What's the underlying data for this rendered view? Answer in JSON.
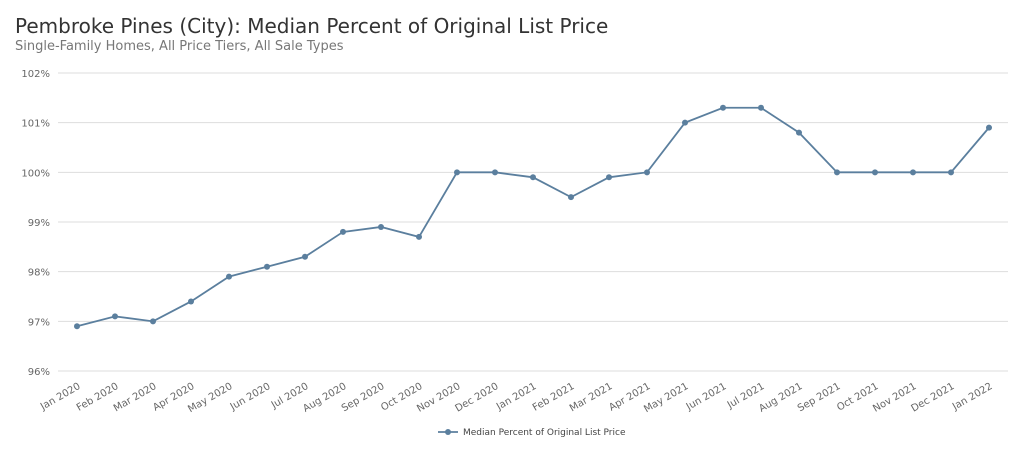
{
  "chart_data": {
    "type": "line",
    "title": "Pembroke Pines (City): Median Percent of Original List Price",
    "subtitle": "Single-Family Homes, All Price Tiers, All Sale Types",
    "categories": [
      "Jan 2020",
      "Feb 2020",
      "Mar 2020",
      "Apr 2020",
      "May 2020",
      "Jun 2020",
      "Jul 2020",
      "Aug 2020",
      "Sep 2020",
      "Oct 2020",
      "Nov 2020",
      "Dec 2020",
      "Jan 2021",
      "Feb 2021",
      "Mar 2021",
      "Apr 2021",
      "May 2021",
      "Jun 2021",
      "Jul 2021",
      "Aug 2021",
      "Sep 2021",
      "Oct 2021",
      "Nov 2021",
      "Dec 2021",
      "Jan 2022"
    ],
    "series": [
      {
        "name": "Median Percent of Original List Price",
        "color": "#5b7f9e",
        "values": [
          96.9,
          97.1,
          97.0,
          97.4,
          97.9,
          98.1,
          98.3,
          98.8,
          98.9,
          98.7,
          100.0,
          100.0,
          99.9,
          99.5,
          99.9,
          100.0,
          101.0,
          101.3,
          101.3,
          100.8,
          100.0,
          100.0,
          100.0,
          100.0,
          100.9
        ]
      }
    ],
    "ylim": [
      96,
      102
    ],
    "yticks": [
      "96%",
      "97%",
      "98%",
      "99%",
      "100%",
      "101%",
      "102%"
    ],
    "grid": true,
    "legend": "bottom"
  }
}
